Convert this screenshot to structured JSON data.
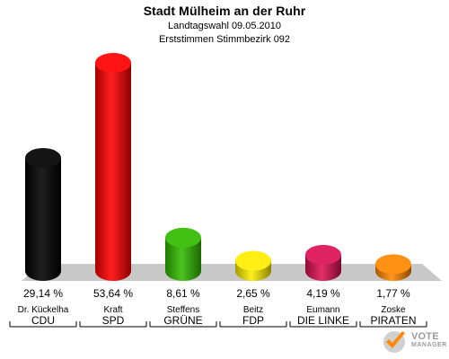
{
  "chart_data": {
    "type": "bar",
    "title": "Stadt Mülheim an der Ruhr",
    "subtitles": [
      "Landtagswahl 09.05.2010",
      "Erststimmen Stimmbezirk 092"
    ],
    "categories": [
      {
        "candidate": "Dr. Kückelha",
        "party": "CDU",
        "label": "29,14 %",
        "value": 29.14,
        "color": "#000000"
      },
      {
        "candidate": "Kraft",
        "party": "SPD",
        "label": "53,64 %",
        "value": 53.64,
        "color": "#ff0000"
      },
      {
        "candidate": "Steffens",
        "party": "GRÜNE",
        "label": "8,61 %",
        "value": 8.61,
        "color": "#33bb00"
      },
      {
        "candidate": "Beitz",
        "party": "FDP",
        "label": "2,65 %",
        "value": 2.65,
        "color": "#ffee00"
      },
      {
        "candidate": "Eumann",
        "party": "DIE LINKE",
        "label": "4,19 %",
        "value": 4.19,
        "color": "#dd1155"
      },
      {
        "candidate": "Zoske",
        "party": "PIRATEN",
        "label": "1,77 %",
        "value": 1.77,
        "color": "#ff8800"
      }
    ],
    "ylim": [
      0,
      53.64
    ],
    "grid": false,
    "legend": "none"
  },
  "watermark": {
    "line1": "VOTE",
    "line2": "MANAGER",
    "icon": "check-mark-logo-icon"
  }
}
